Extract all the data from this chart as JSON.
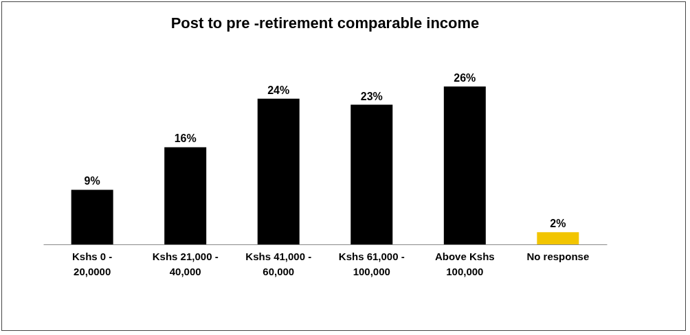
{
  "chart_data": {
    "type": "bar",
    "title": "Post to pre -retirement comparable  income",
    "categories": [
      "Kshs 0 - 20,0000",
      "Kshs 21,000 - 40,000",
      "Kshs 41,000 - 60,000",
      "Kshs 61,000 - 100,000",
      "Above Kshs 100,000",
      "No response"
    ],
    "values": [
      9,
      16,
      24,
      23,
      26,
      2
    ],
    "colors": [
      "#000000",
      "#000000",
      "#000000",
      "#000000",
      "#000000",
      "#f2c500"
    ],
    "value_labels": [
      "9%",
      "16%",
      "24%",
      "23%",
      "26%",
      "2%"
    ]
  }
}
